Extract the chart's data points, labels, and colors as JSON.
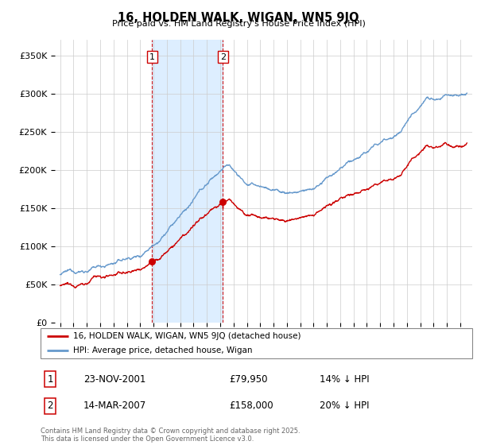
{
  "title": "16, HOLDEN WALK, WIGAN, WN5 9JQ",
  "subtitle": "Price paid vs. HM Land Registry's House Price Index (HPI)",
  "ylim": [
    0,
    370000
  ],
  "yticks": [
    0,
    50000,
    100000,
    150000,
    200000,
    250000,
    300000,
    350000
  ],
  "ytick_labels": [
    "£0",
    "£50K",
    "£100K",
    "£150K",
    "£200K",
    "£250K",
    "£300K",
    "£350K"
  ],
  "xlim_start": 1994.6,
  "xlim_end": 2025.9,
  "sale1_date": 2001.9,
  "sale1_price": 79950,
  "sale1_label": "1",
  "sale1_text": "23-NOV-2001",
  "sale1_price_str": "£79,950",
  "sale1_hpi": "14% ↓ HPI",
  "sale2_date": 2007.2,
  "sale2_price": 158000,
  "sale2_label": "2",
  "sale2_text": "14-MAR-2007",
  "sale2_price_str": "£158,000",
  "sale2_hpi": "20% ↓ HPI",
  "hpi_color": "#6699cc",
  "sold_color": "#cc0000",
  "shade_color": "#ddeeff",
  "grid_color": "#cccccc",
  "bg_color": "#f0f0f0",
  "footer": "Contains HM Land Registry data © Crown copyright and database right 2025.\nThis data is licensed under the Open Government Licence v3.0.",
  "legend_line1": "16, HOLDEN WALK, WIGAN, WN5 9JQ (detached house)",
  "legend_line2": "HPI: Average price, detached house, Wigan"
}
